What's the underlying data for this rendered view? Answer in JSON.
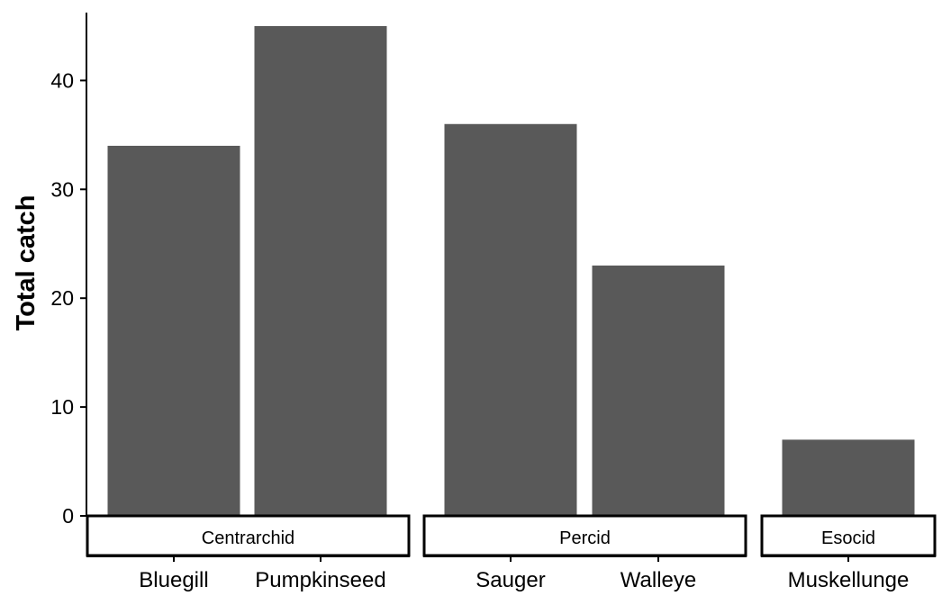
{
  "chart_data": {
    "type": "bar",
    "title": "",
    "xlabel": "",
    "ylabel": "Total catch",
    "ylim": [
      0,
      46
    ],
    "yticks": [
      0,
      10,
      20,
      30,
      40
    ],
    "grid": false,
    "legend": "none",
    "bar_color": "#595959",
    "facets": [
      {
        "name": "Centrarchid",
        "categories": [
          "Bluegill",
          "Pumpkinseed"
        ],
        "values": [
          34,
          45
        ]
      },
      {
        "name": "Percid",
        "categories": [
          "Sauger",
          "Walleye"
        ],
        "values": [
          36,
          23
        ]
      },
      {
        "name": "Esocid",
        "categories": [
          "Muskellunge"
        ],
        "values": [
          7
        ]
      }
    ]
  }
}
